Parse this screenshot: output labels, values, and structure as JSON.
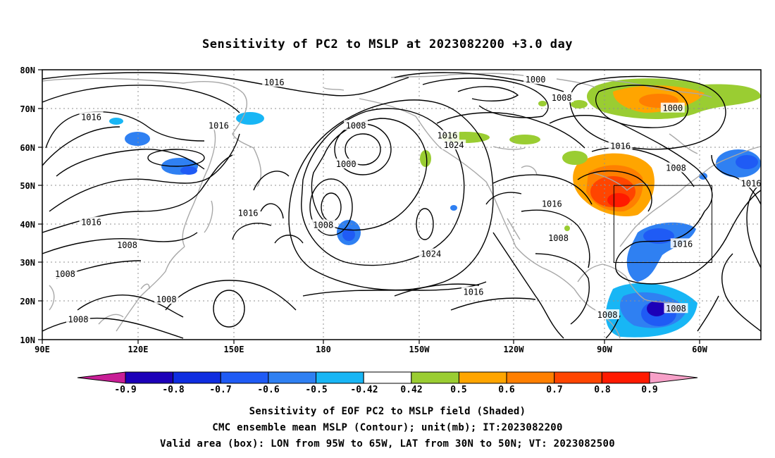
{
  "title": "Sensitivity of PC2 to MSLP at 2023082200 +3.0 day",
  "axes": {
    "lon_ticks": [
      "90E",
      "120E",
      "150E",
      "180",
      "150W",
      "120W",
      "90W",
      "60W"
    ],
    "lat_ticks": [
      "80N",
      "70N",
      "60N",
      "50N",
      "40N",
      "30N",
      "20N",
      "10N"
    ],
    "lon_range_deg_east": [
      90,
      310
    ],
    "lat_range_deg": [
      10,
      80
    ],
    "grid": "dotted"
  },
  "contour_labels": [
    {
      "text": "1016",
      "lon": 161,
      "lat": 76.7
    },
    {
      "text": "1000",
      "lon": 241,
      "lat": 77.4
    },
    {
      "text": "1008",
      "lon": 249,
      "lat": 72.7
    },
    {
      "text": "1000",
      "lon": 283,
      "lat": 70.0
    },
    {
      "text": "1016",
      "lon": 105,
      "lat": 67.7
    },
    {
      "text": "1016",
      "lon": 144,
      "lat": 65.5
    },
    {
      "text": "1008",
      "lon": 186,
      "lat": 65.5
    },
    {
      "text": "1016",
      "lon": 214,
      "lat": 62.9
    },
    {
      "text": "1024",
      "lon": 216,
      "lat": 60.4
    },
    {
      "text": "1016",
      "lon": 267,
      "lat": 60.2
    },
    {
      "text": "1000",
      "lon": 183,
      "lat": 55.5
    },
    {
      "text": "1008",
      "lon": 284,
      "lat": 54.5
    },
    {
      "text": "1016",
      "lon": 307,
      "lat": 50.5
    },
    {
      "text": "1016",
      "lon": 246,
      "lat": 45.2
    },
    {
      "text": "1016",
      "lon": 153,
      "lat": 42.8
    },
    {
      "text": "1016",
      "lon": 105,
      "lat": 40.4
    },
    {
      "text": "1008",
      "lon": 176,
      "lat": 39.7
    },
    {
      "text": "1008",
      "lon": 116,
      "lat": 34.5
    },
    {
      "text": "1016",
      "lon": 286,
      "lat": 34.8
    },
    {
      "text": "1008",
      "lon": 248,
      "lat": 36.3
    },
    {
      "text": "1024",
      "lon": 209,
      "lat": 32.2
    },
    {
      "text": "1008",
      "lon": 97,
      "lat": 27.0
    },
    {
      "text": "1016",
      "lon": 222,
      "lat": 22.3
    },
    {
      "text": "1008",
      "lon": 128,
      "lat": 20.4
    },
    {
      "text": "1008",
      "lon": 284,
      "lat": 18.0
    },
    {
      "text": "1008",
      "lon": 263,
      "lat": 16.4
    },
    {
      "text": "1008",
      "lon": 101,
      "lat": 15.2
    }
  ],
  "valid_box": {
    "lon_west": 265,
    "lon_east": 295,
    "lat_south": 30,
    "lat_north": 50
  },
  "colorbar": {
    "labels": [
      "-0.9",
      "-0.8",
      "-0.7",
      "-0.6",
      "-0.5",
      "-0.42",
      "0.42",
      "0.5",
      "0.6",
      "0.7",
      "0.8",
      "0.9"
    ],
    "colors": [
      "#1c00b8",
      "#0f2de0",
      "#1f5bf5",
      "#2f80f2",
      "#18b6f5",
      "#ffffff",
      "#9acd32",
      "#ffa500",
      "#ff7f00",
      "#ff4500",
      "#ff1a00"
    ],
    "under_color": "#c81e96",
    "over_color": "#f7a0c8"
  },
  "captions": [
    "Sensitivity of EOF PC2 to MSLP field (Shaded)",
    "CMC ensemble mean MSLP (Contour); unit(mb); IT:2023082200",
    "Valid area (box): LON from 95W to 65W, LAT from 30N to 50N; VT: 2023082500"
  ]
}
